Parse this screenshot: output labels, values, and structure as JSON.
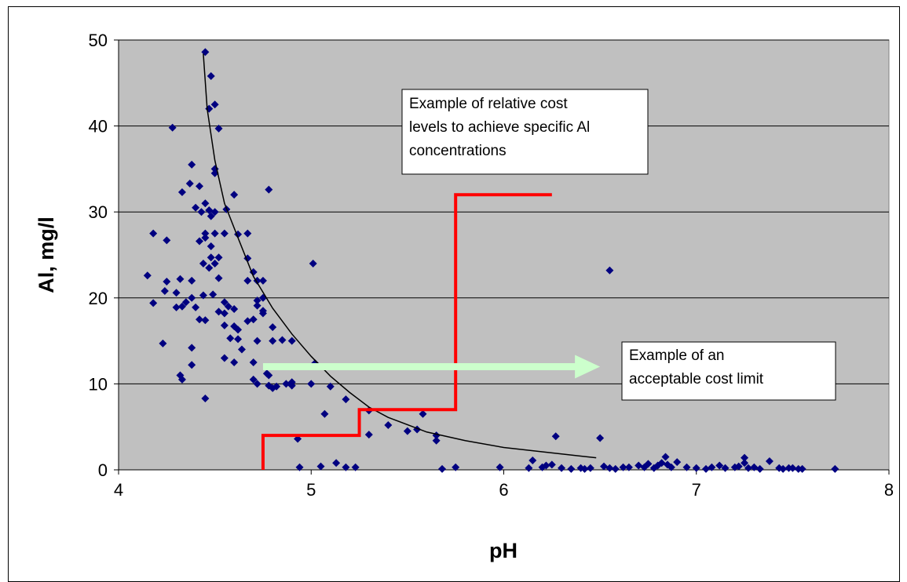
{
  "chart_data": {
    "type": "scatter",
    "xlabel": "pH",
    "ylabel": "Al, mg/l",
    "xlim": [
      4,
      8
    ],
    "ylim": [
      0,
      50
    ],
    "xticks": [
      4,
      5,
      6,
      7,
      8
    ],
    "yticks": [
      0,
      10,
      20,
      30,
      40,
      50
    ],
    "grid": "horizontal",
    "colors": {
      "plot_bg": "#c0c0c0",
      "points": "#000080",
      "trend": "#000000",
      "cost_step": "#ff0000",
      "arrow": "#ccffcc"
    },
    "points": [
      [
        4.45,
        48.6
      ],
      [
        4.48,
        45.8
      ],
      [
        4.5,
        42.5
      ],
      [
        4.47,
        42.0
      ],
      [
        4.52,
        39.7
      ],
      [
        4.28,
        39.8
      ],
      [
        4.38,
        35.5
      ],
      [
        4.5,
        35.0
      ],
      [
        4.5,
        34.5
      ],
      [
        4.37,
        33.3
      ],
      [
        4.33,
        32.3
      ],
      [
        4.42,
        33.0
      ],
      [
        4.6,
        32.0
      ],
      [
        4.78,
        32.6
      ],
      [
        4.45,
        31.0
      ],
      [
        4.4,
        30.5
      ],
      [
        4.43,
        30.0
      ],
      [
        4.47,
        30.2
      ],
      [
        4.5,
        30.0
      ],
      [
        4.56,
        30.3
      ],
      [
        4.48,
        29.5
      ],
      [
        4.18,
        27.5
      ],
      [
        4.25,
        26.7
      ],
      [
        4.45,
        27.0
      ],
      [
        4.45,
        27.5
      ],
      [
        4.5,
        27.5
      ],
      [
        4.55,
        27.5
      ],
      [
        4.62,
        27.4
      ],
      [
        4.67,
        27.5
      ],
      [
        4.42,
        26.6
      ],
      [
        4.48,
        26.0
      ],
      [
        4.48,
        24.7
      ],
      [
        4.52,
        24.7
      ],
      [
        4.67,
        24.6
      ],
      [
        4.44,
        24.0
      ],
      [
        4.5,
        24.0
      ],
      [
        4.47,
        23.5
      ],
      [
        4.7,
        23.0
      ],
      [
        5.01,
        24.0
      ],
      [
        4.75,
        22.0
      ],
      [
        4.15,
        22.6
      ],
      [
        4.25,
        21.9
      ],
      [
        4.32,
        22.2
      ],
      [
        4.38,
        22.0
      ],
      [
        4.52,
        22.3
      ],
      [
        4.67,
        22.0
      ],
      [
        4.72,
        22.0
      ],
      [
        4.24,
        20.8
      ],
      [
        4.3,
        20.6
      ],
      [
        4.18,
        19.4
      ],
      [
        4.33,
        19.0
      ],
      [
        4.35,
        19.5
      ],
      [
        4.38,
        20.0
      ],
      [
        4.44,
        20.3
      ],
      [
        4.49,
        20.4
      ],
      [
        4.55,
        19.5
      ],
      [
        4.57,
        19.0
      ],
      [
        4.72,
        19.1
      ],
      [
        4.72,
        19.7
      ],
      [
        4.75,
        20.0
      ],
      [
        4.3,
        18.9
      ],
      [
        4.4,
        18.9
      ],
      [
        4.52,
        18.4
      ],
      [
        4.55,
        18.2
      ],
      [
        4.6,
        18.7
      ],
      [
        4.67,
        17.3
      ],
      [
        4.7,
        17.5
      ],
      [
        4.75,
        18.2
      ],
      [
        4.75,
        18.5
      ],
      [
        4.42,
        17.5
      ],
      [
        4.45,
        17.4
      ],
      [
        4.55,
        16.8
      ],
      [
        4.6,
        16.7
      ],
      [
        4.58,
        15.3
      ],
      [
        4.62,
        15.2
      ],
      [
        4.72,
        15.0
      ],
      [
        4.62,
        16.3
      ],
      [
        4.8,
        16.6
      ],
      [
        4.8,
        15.0
      ],
      [
        4.85,
        15.1
      ],
      [
        4.9,
        15.0
      ],
      [
        4.23,
        14.7
      ],
      [
        4.38,
        14.2
      ],
      [
        4.64,
        14.0
      ],
      [
        4.38,
        12.2
      ],
      [
        4.55,
        13.0
      ],
      [
        4.6,
        12.5
      ],
      [
        4.7,
        12.5
      ],
      [
        4.77,
        11.2
      ],
      [
        4.78,
        11.0
      ],
      [
        4.32,
        11.0
      ],
      [
        4.33,
        10.5
      ],
      [
        4.7,
        10.5
      ],
      [
        4.72,
        10.0
      ],
      [
        4.78,
        9.8
      ],
      [
        4.8,
        9.5
      ],
      [
        4.82,
        9.7
      ],
      [
        4.87,
        10.0
      ],
      [
        4.9,
        10.2
      ],
      [
        4.9,
        9.8
      ],
      [
        5.0,
        10.0
      ],
      [
        5.02,
        12.4
      ],
      [
        5.1,
        9.7
      ],
      [
        5.18,
        8.2
      ],
      [
        4.45,
        8.3
      ],
      [
        5.07,
        6.5
      ],
      [
        5.3,
        6.9
      ],
      [
        5.4,
        5.2
      ],
      [
        5.5,
        4.5
      ],
      [
        5.55,
        4.7
      ],
      [
        5.58,
        6.5
      ],
      [
        5.65,
        3.4
      ],
      [
        5.65,
        4.0
      ],
      [
        5.3,
        4.1
      ],
      [
        4.93,
        3.6
      ],
      [
        6.27,
        3.9
      ],
      [
        6.5,
        3.7
      ],
      [
        6.55,
        23.2
      ],
      [
        4.94,
        0.3
      ],
      [
        5.05,
        0.4
      ],
      [
        5.13,
        0.8
      ],
      [
        5.18,
        0.3
      ],
      [
        5.23,
        0.3
      ],
      [
        5.68,
        0.1
      ],
      [
        5.75,
        0.3
      ],
      [
        5.98,
        0.3
      ],
      [
        6.13,
        0.2
      ],
      [
        6.15,
        1.1
      ],
      [
        6.2,
        0.3
      ],
      [
        6.22,
        0.5
      ],
      [
        6.25,
        0.6
      ],
      [
        6.3,
        0.2
      ],
      [
        6.35,
        0.1
      ],
      [
        6.4,
        0.2
      ],
      [
        6.42,
        0.1
      ],
      [
        6.45,
        0.2
      ],
      [
        6.52,
        0.4
      ],
      [
        6.55,
        0.2
      ],
      [
        6.58,
        0.1
      ],
      [
        6.62,
        0.3
      ],
      [
        6.65,
        0.3
      ],
      [
        6.7,
        0.5
      ],
      [
        6.73,
        0.3
      ],
      [
        6.75,
        0.7
      ],
      [
        6.78,
        0.2
      ],
      [
        6.8,
        0.5
      ],
      [
        6.82,
        0.8
      ],
      [
        6.84,
        1.5
      ],
      [
        6.85,
        0.6
      ],
      [
        6.87,
        0.3
      ],
      [
        6.9,
        0.9
      ],
      [
        6.95,
        0.3
      ],
      [
        7.0,
        0.2
      ],
      [
        7.05,
        0.1
      ],
      [
        7.08,
        0.3
      ],
      [
        7.12,
        0.5
      ],
      [
        7.15,
        0.2
      ],
      [
        7.2,
        0.3
      ],
      [
        7.22,
        0.4
      ],
      [
        7.25,
        1.4
      ],
      [
        7.25,
        0.8
      ],
      [
        7.27,
        0.2
      ],
      [
        7.3,
        0.3
      ],
      [
        7.33,
        0.1
      ],
      [
        7.38,
        1.0
      ],
      [
        7.43,
        0.2
      ],
      [
        7.45,
        0.1
      ],
      [
        7.48,
        0.2
      ],
      [
        7.5,
        0.2
      ],
      [
        7.53,
        0.1
      ],
      [
        7.55,
        0.1
      ],
      [
        7.72,
        0.1
      ]
    ],
    "trendline": [
      [
        4.44,
        48.4
      ],
      [
        4.46,
        42.0
      ],
      [
        4.5,
        36.0
      ],
      [
        4.55,
        31.0
      ],
      [
        4.62,
        27.0
      ],
      [
        4.7,
        22.5
      ],
      [
        4.8,
        18.8
      ],
      [
        4.9,
        15.8
      ],
      [
        5.0,
        13.2
      ],
      [
        5.1,
        10.9
      ],
      [
        5.2,
        9.0
      ],
      [
        5.3,
        7.3
      ],
      [
        5.4,
        6.1
      ],
      [
        5.6,
        4.4
      ],
      [
        5.8,
        3.4
      ],
      [
        6.0,
        2.6
      ],
      [
        6.2,
        2.1
      ],
      [
        6.4,
        1.6
      ],
      [
        6.48,
        1.4
      ]
    ],
    "cost_step": [
      [
        4.75,
        0
      ],
      [
        4.75,
        4.0
      ],
      [
        5.25,
        4.0
      ],
      [
        5.25,
        7.0
      ],
      [
        5.75,
        7.0
      ],
      [
        5.75,
        32.0
      ],
      [
        6.25,
        32.0
      ]
    ],
    "arrow": {
      "from": [
        4.75,
        12.0
      ],
      "to": [
        6.5,
        12.0
      ]
    },
    "annotations": [
      {
        "id": "relative-cost",
        "lines": [
          "Example of relative cost",
          "levels to achieve specific Al",
          "concentrations"
        ]
      },
      {
        "id": "acceptable-limit",
        "lines": [
          "Example of an",
          "acceptable cost limit"
        ]
      }
    ]
  }
}
